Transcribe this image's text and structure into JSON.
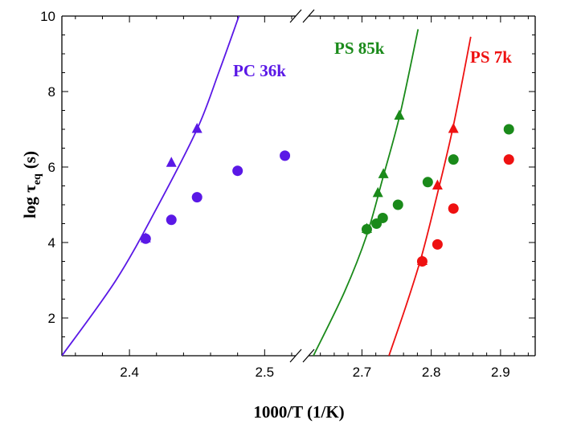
{
  "chart_data": {
    "type": "scatter",
    "xlabel": "1000/T (1/K)",
    "ylabel": {
      "main": "log τ",
      "sub": "eq",
      "unit": "(s)"
    },
    "ylim": [
      1,
      10
    ],
    "yticks": [
      2,
      4,
      6,
      8,
      10
    ],
    "x_axis_broken": true,
    "x_segments": [
      {
        "xlim": [
          2.35,
          2.523
        ],
        "ticks": [
          "2.4",
          "2.5"
        ]
      },
      {
        "xlim": [
          2.623,
          2.95
        ],
        "ticks": [
          "2.7",
          "2.8",
          "2.9"
        ]
      }
    ],
    "grid": false,
    "series": [
      {
        "name": "PC 36k",
        "color": "#5a18e6",
        "circles": [
          [
            2.412,
            4.1
          ],
          [
            2.431,
            4.6
          ],
          [
            2.45,
            5.2
          ],
          [
            2.48,
            5.9
          ],
          [
            2.515,
            6.3
          ]
        ],
        "triangles": [
          [
            2.412,
            4.1
          ],
          [
            2.431,
            6.1
          ],
          [
            2.45,
            7.0
          ]
        ],
        "fit_curve": [
          [
            2.35,
            1.0
          ],
          [
            2.39,
            3.0
          ],
          [
            2.42,
            4.9
          ],
          [
            2.45,
            7.0
          ],
          [
            2.466,
            8.5
          ],
          [
            2.481,
            10.0
          ]
        ]
      },
      {
        "name": "PS 85k",
        "color": "#1a8a1a",
        "circles": [
          [
            2.707,
            4.35
          ],
          [
            2.721,
            4.5
          ],
          [
            2.73,
            4.65
          ],
          [
            2.752,
            5.0
          ],
          [
            2.795,
            5.6
          ],
          [
            2.832,
            6.2
          ],
          [
            2.912,
            7.0
          ]
        ],
        "triangles": [
          [
            2.707,
            4.35
          ],
          [
            2.723,
            5.3
          ],
          [
            2.731,
            5.8
          ],
          [
            2.754,
            7.35
          ]
        ],
        "fit_curve": [
          [
            2.63,
            1.0
          ],
          [
            2.675,
            2.7
          ],
          [
            2.707,
            4.2
          ],
          [
            2.73,
            5.7
          ],
          [
            2.755,
            7.4
          ],
          [
            2.781,
            9.65
          ]
        ]
      },
      {
        "name": "PS 7k",
        "color": "#ee1111",
        "circles": [
          [
            2.787,
            3.5
          ],
          [
            2.809,
            3.95
          ],
          [
            2.832,
            4.9
          ],
          [
            2.912,
            6.2
          ]
        ],
        "triangles": [
          [
            2.787,
            3.5
          ],
          [
            2.809,
            5.5
          ],
          [
            2.832,
            7.0
          ]
        ],
        "fit_curve": [
          [
            2.739,
            1.0
          ],
          [
            2.765,
            2.4
          ],
          [
            2.787,
            3.7
          ],
          [
            2.809,
            5.3
          ],
          [
            2.832,
            7.1
          ],
          [
            2.857,
            9.45
          ]
        ]
      }
    ]
  }
}
